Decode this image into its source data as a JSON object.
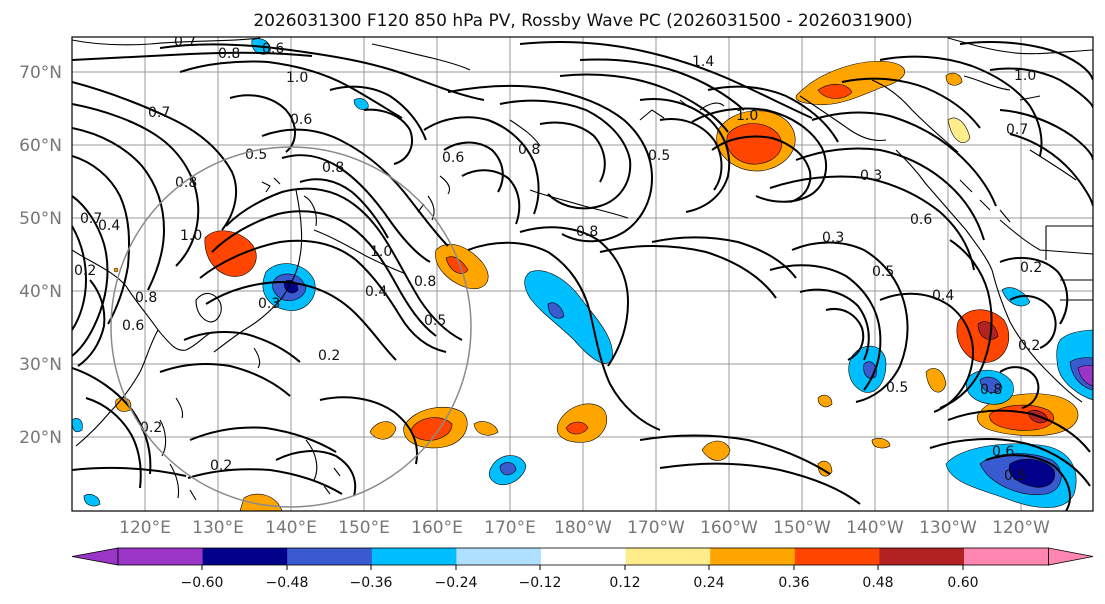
{
  "title": "2026031300 F120 850 hPa PV, Rossby Wave PC (2026031500 - 2026031900)",
  "lat_labels": [
    "70°N",
    "60°N",
    "50°N",
    "40°N",
    "30°N",
    "20°N"
  ],
  "lon_labels": [
    "120°E",
    "130°E",
    "140°E",
    "150°E",
    "160°E",
    "170°E",
    "180°W",
    "170°W",
    "160°W",
    "150°W",
    "140°W",
    "130°W",
    "120°W"
  ],
  "colorbar": {
    "colors": [
      "#9a35c8",
      "#00008b",
      "#3a5bd0",
      "#00bfff",
      "#b0e0ff",
      "#ffffff",
      "#ffec8b",
      "#ffa500",
      "#ff4500",
      "#b22222",
      "#ff86b0"
    ],
    "tick_labels": [
      "−0.60",
      "−0.48",
      "−0.36",
      "−0.24",
      "−0.12",
      "0.12",
      "0.24",
      "0.36",
      "0.48",
      "0.60"
    ]
  },
  "contour_labels": [
    "0.7",
    "0.8",
    "0.6",
    "1.0",
    "0.7",
    "0.6",
    "0.5",
    "0.8",
    "0.7",
    "0.4",
    "1.0",
    "0.2",
    "0.8",
    "0.6",
    "0.3",
    "0.4",
    "0.5",
    "0.2",
    "0.2",
    "0.2",
    "0.8",
    "1.0",
    "0.8",
    "0.8",
    "0.6",
    "1.4",
    "1.0",
    "0.5",
    "0.8",
    "0.3",
    "0.3",
    "0.6",
    "0.5",
    "0.4",
    "0.5",
    "1.0",
    "0.7",
    "0.2",
    "0.2",
    "0.8",
    "0.6",
    "0.5"
  ]
}
